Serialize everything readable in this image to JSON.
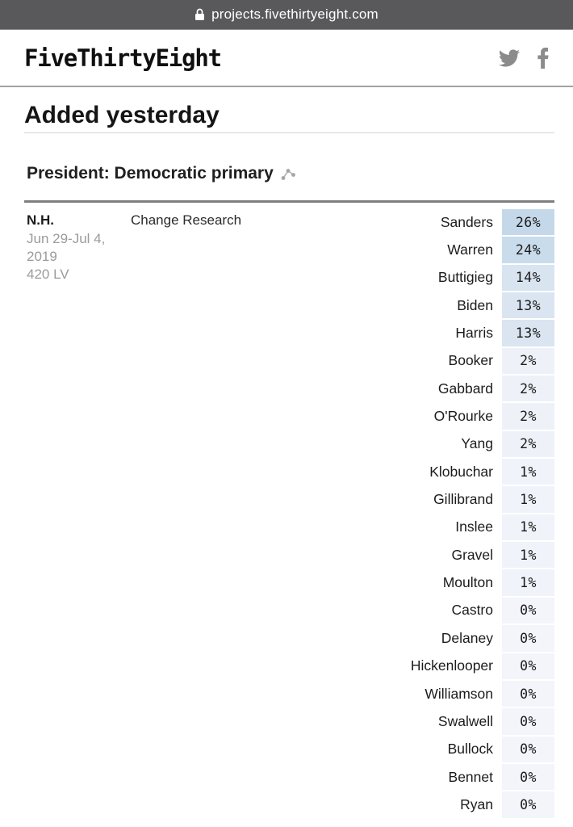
{
  "browser": {
    "url": "projects.fivethirtyeight.com"
  },
  "header": {
    "logo": "FiveThirtyEight",
    "social_icons": [
      "twitter-icon",
      "facebook-icon"
    ]
  },
  "page": {
    "heading": "Added yesterday"
  },
  "section": {
    "title": "President: Democratic primary",
    "icon": "trend-chart-icon"
  },
  "poll": {
    "state": "N.H.",
    "dates": "Jun 29-Jul 4, 2019",
    "sample": "420 LV",
    "pollster": "Change Research",
    "results": [
      {
        "name": "Sanders",
        "pct": "26%",
        "cell_color": "#c4d8ea"
      },
      {
        "name": "Warren",
        "pct": "24%",
        "cell_color": "#c9dcec"
      },
      {
        "name": "Buttigieg",
        "pct": "14%",
        "cell_color": "#d8e4f0"
      },
      {
        "name": "Biden",
        "pct": "13%",
        "cell_color": "#dae5f1"
      },
      {
        "name": "Harris",
        "pct": "13%",
        "cell_color": "#dae5f1"
      },
      {
        "name": "Booker",
        "pct": "2%",
        "cell_color": "#eef2f8"
      },
      {
        "name": "Gabbard",
        "pct": "2%",
        "cell_color": "#eef2f8"
      },
      {
        "name": "O'Rourke",
        "pct": "2%",
        "cell_color": "#eef2f8"
      },
      {
        "name": "Yang",
        "pct": "2%",
        "cell_color": "#eef2f8"
      },
      {
        "name": "Klobuchar",
        "pct": "1%",
        "cell_color": "#f0f3f9"
      },
      {
        "name": "Gillibrand",
        "pct": "1%",
        "cell_color": "#f0f3f9"
      },
      {
        "name": "Inslee",
        "pct": "1%",
        "cell_color": "#f0f3f9"
      },
      {
        "name": "Gravel",
        "pct": "1%",
        "cell_color": "#f0f3f9"
      },
      {
        "name": "Moulton",
        "pct": "1%",
        "cell_color": "#f0f3f9"
      },
      {
        "name": "Castro",
        "pct": "0%",
        "cell_color": "#f3f5fa"
      },
      {
        "name": "Delaney",
        "pct": "0%",
        "cell_color": "#f3f5fa"
      },
      {
        "name": "Hickenlooper",
        "pct": "0%",
        "cell_color": "#f3f5fa"
      },
      {
        "name": "Williamson",
        "pct": "0%",
        "cell_color": "#f3f5fa"
      },
      {
        "name": "Swalwell",
        "pct": "0%",
        "cell_color": "#f3f5fa"
      },
      {
        "name": "Bullock",
        "pct": "0%",
        "cell_color": "#f3f5fa"
      },
      {
        "name": "Bennet",
        "pct": "0%",
        "cell_color": "#f3f5fa"
      },
      {
        "name": "Ryan",
        "pct": "0%",
        "cell_color": "#f3f5fa"
      }
    ]
  },
  "colors": {
    "browser_bar_bg": "#59595b",
    "header_border": "#a3a3a3",
    "table_top_border": "#7e7e7e",
    "muted_text": "#9b9b9b",
    "icon_gray": "#8b8b8b",
    "max_cell_blue": "#c4d8ea"
  }
}
